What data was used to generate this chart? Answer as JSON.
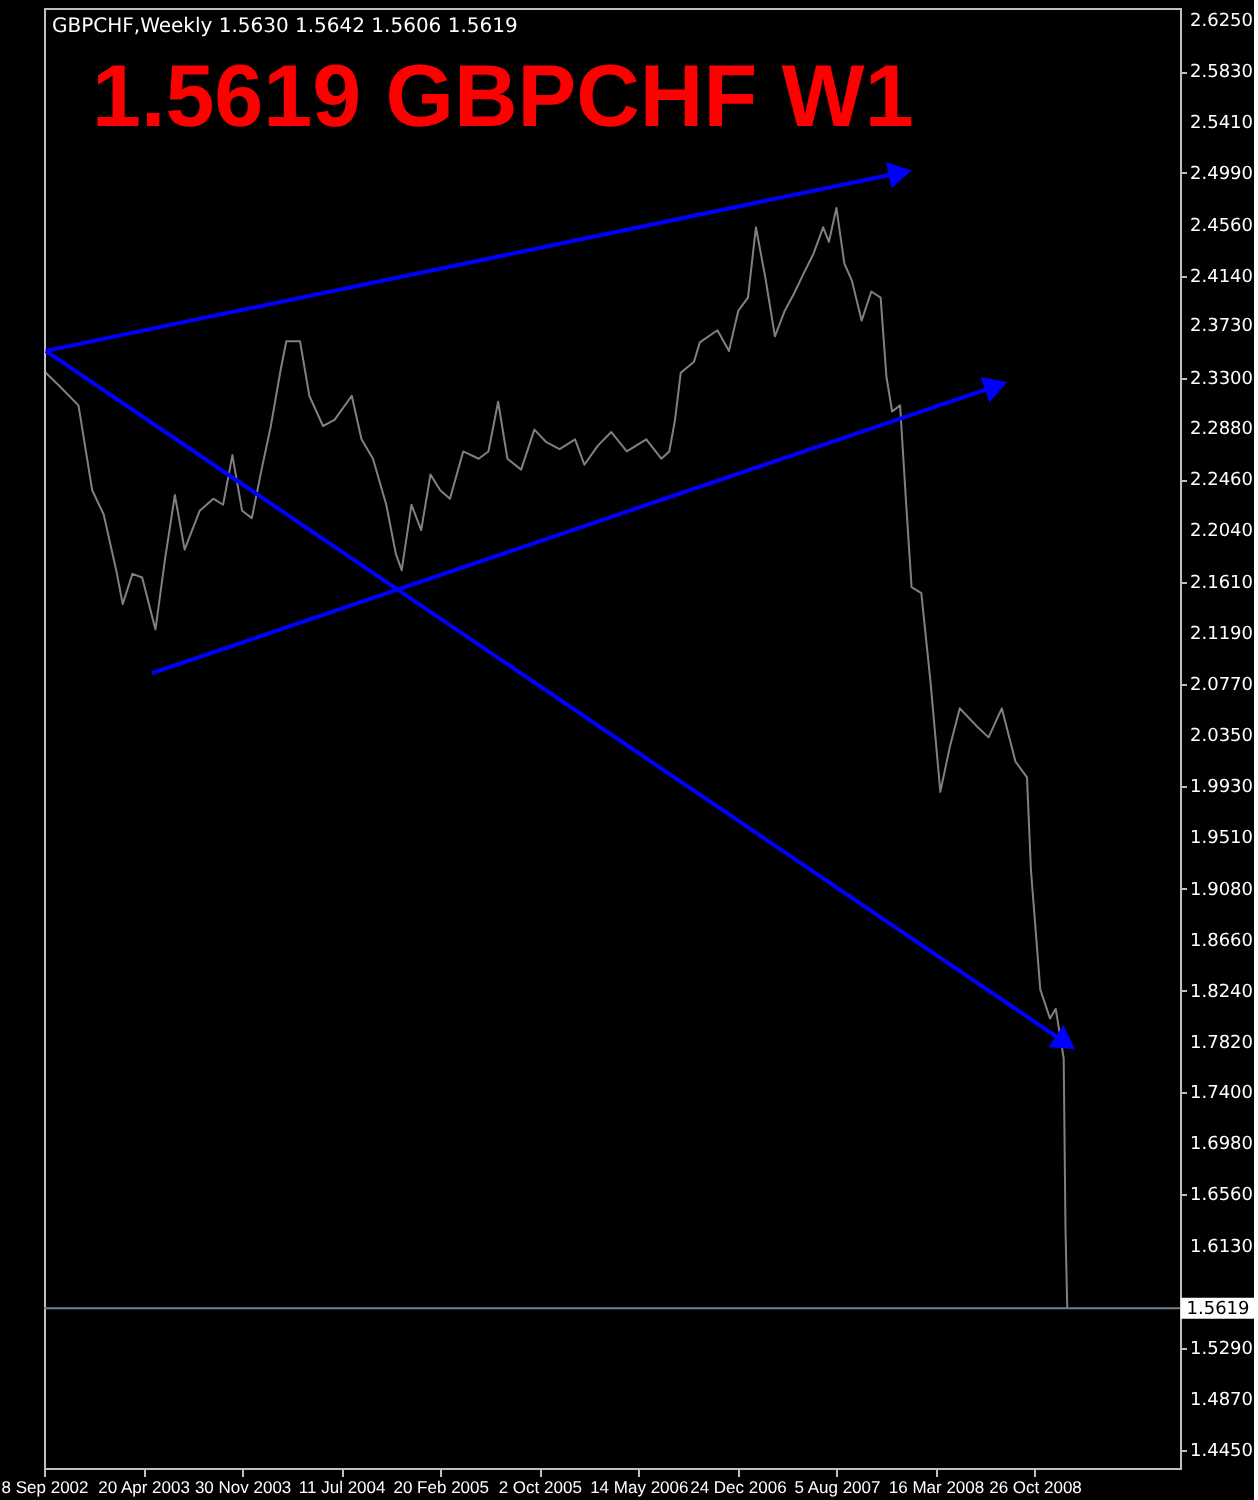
{
  "chart_data": {
    "type": "line",
    "title": "1.5619 GBPCHF W1",
    "subtitle": "GBPCHF,Weekly  1.5630 1.5642 1.5606 1.5619",
    "series": [
      {
        "type": "line",
        "color": "#808080",
        "x": [
          "2002-09-12",
          "2002-10-13",
          "2002-11-25",
          "2002-12-26",
          "2003-01-21",
          "2003-02-20",
          "2003-03-05",
          "2003-03-27",
          "2003-04-18",
          "2003-05-18",
          "2003-06-09",
          "2003-07-01",
          "2003-07-23",
          "2003-08-26",
          "2003-09-26",
          "2003-10-18",
          "2003-11-08",
          "2003-11-30",
          "2003-12-22",
          "2004-01-13",
          "2004-02-03",
          "2004-02-25",
          "2004-03-09",
          "2004-04-09",
          "2004-04-30",
          "2004-05-31",
          "2004-06-26",
          "2004-08-04",
          "2004-08-26",
          "2004-09-21",
          "2004-10-21",
          "2004-11-12",
          "2004-11-25",
          "2004-12-17",
          "2005-01-08",
          "2005-01-29",
          "2005-02-20",
          "2005-03-14",
          "2005-04-13",
          "2005-05-18",
          "2005-06-09",
          "2005-07-01",
          "2005-07-22",
          "2005-08-22",
          "2005-09-21",
          "2005-10-17",
          "2005-11-17",
          "2005-12-22",
          "2006-01-12",
          "2006-02-12",
          "2006-03-14",
          "2006-04-18",
          "2006-06-01",
          "2006-07-05",
          "2006-07-23",
          "2006-08-05",
          "2006-08-18",
          "2006-09-17",
          "2006-09-30",
          "2006-11-09",
          "2006-12-05",
          "2006-12-26",
          "2007-01-17",
          "2007-02-04",
          "2007-02-25",
          "2007-03-19",
          "2007-04-10",
          "2007-05-02",
          "2007-05-23",
          "2007-06-14",
          "2007-07-06",
          "2007-07-19",
          "2007-08-05",
          "2007-08-23",
          "2007-09-09",
          "2007-10-01",
          "2007-10-23",
          "2007-11-13",
          "2007-11-26",
          "2007-12-09",
          "2007-12-27",
          "2008-01-09",
          "2008-01-22",
          "2008-02-13",
          "2008-03-05",
          "2008-03-27",
          "2008-04-18",
          "2008-05-10",
          "2008-06-18",
          "2008-07-14",
          "2008-08-13",
          "2008-09-13",
          "2008-10-09",
          "2008-10-18",
          "2008-11-08",
          "2008-11-30",
          "2008-12-13",
          "2008-12-31",
          "2009-01-04",
          "2009-01-08"
        ],
        "values": [
          2.334,
          2.323,
          2.307,
          2.237,
          2.217,
          2.168,
          2.143,
          2.168,
          2.165,
          2.122,
          2.181,
          2.233,
          2.188,
          2.22,
          2.23,
          2.225,
          2.266,
          2.22,
          2.214,
          2.254,
          2.29,
          2.336,
          2.36,
          2.36,
          2.315,
          2.29,
          2.295,
          2.315,
          2.279,
          2.263,
          2.225,
          2.184,
          2.171,
          2.225,
          2.204,
          2.25,
          2.237,
          2.23,
          2.269,
          2.263,
          2.269,
          2.31,
          2.263,
          2.254,
          2.287,
          2.277,
          2.271,
          2.279,
          2.258,
          2.274,
          2.285,
          2.269,
          2.279,
          2.263,
          2.269,
          2.295,
          2.334,
          2.343,
          2.359,
          2.369,
          2.352,
          2.385,
          2.396,
          2.454,
          2.413,
          2.364,
          2.385,
          2.4,
          2.416,
          2.432,
          2.454,
          2.442,
          2.47,
          2.424,
          2.41,
          2.377,
          2.401,
          2.396,
          2.331,
          2.302,
          2.307,
          2.23,
          2.157,
          2.152,
          2.078,
          1.988,
          2.026,
          2.057,
          2.042,
          2.033,
          2.057,
          2.013,
          2.0,
          1.923,
          1.825,
          1.801,
          1.809,
          1.768,
          1.629,
          1.5619
        ]
      },
      {
        "type": "line",
        "color": "#0000ff",
        "x": [
          "2002-09-12",
          "2007-12-27"
        ],
        "values": [
          2.352,
          2.499
        ]
      },
      {
        "type": "line",
        "color": "#0000ff",
        "x": [
          "2003-05-10",
          "2008-07-31"
        ],
        "values": [
          2.086,
          2.323
        ]
      },
      {
        "type": "line",
        "color": "#0000ff",
        "x": [
          "2002-09-12",
          "2009-01-04"
        ],
        "values": [
          2.352,
          1.781
        ]
      }
    ],
    "xlim": [
      "2002-09-08",
      "2009-09-20"
    ],
    "xticks": [
      {
        "value": "2002-09-08",
        "label": "8 Sep 2002"
      },
      {
        "value": "2003-04-20",
        "label": "20 Apr 2003"
      },
      {
        "value": "2003-11-30",
        "label": "30 Nov 2003"
      },
      {
        "value": "2004-07-11",
        "label": "11 Jul 2004"
      },
      {
        "value": "2005-02-20",
        "label": "20 Feb 2005"
      },
      {
        "value": "2005-10-02",
        "label": "2 Oct 2005"
      },
      {
        "value": "2006-05-14",
        "label": "14 May 2006"
      },
      {
        "value": "2006-12-24",
        "label": "24 Dec 2006"
      },
      {
        "value": "2007-08-05",
        "label": "5 Aug 2007"
      },
      {
        "value": "2008-03-16",
        "label": "16 Mar 2008"
      },
      {
        "value": "2008-10-26",
        "label": "26 Oct 2008"
      }
    ],
    "ylim": [
      1.43,
      2.635
    ],
    "yticks": [
      {
        "value": 2.625,
        "label": "2.6250"
      },
      {
        "value": 2.583,
        "label": "2.5830"
      },
      {
        "value": 2.541,
        "label": "2.5410"
      },
      {
        "value": 2.499,
        "label": "2.4990"
      },
      {
        "value": 2.456,
        "label": "2.4560"
      },
      {
        "value": 2.414,
        "label": "2.4140"
      },
      {
        "value": 2.373,
        "label": "2.3730"
      },
      {
        "value": 2.33,
        "label": "2.3300"
      },
      {
        "value": 2.288,
        "label": "2.2880"
      },
      {
        "value": 2.246,
        "label": "2.2460"
      },
      {
        "value": 2.204,
        "label": "2.2040"
      },
      {
        "value": 2.161,
        "label": "2.1610"
      },
      {
        "value": 2.119,
        "label": "2.1190"
      },
      {
        "value": 2.077,
        "label": "2.0770"
      },
      {
        "value": 2.035,
        "label": "2.0350"
      },
      {
        "value": 1.993,
        "label": "1.9930"
      },
      {
        "value": 1.951,
        "label": "1.9510"
      },
      {
        "value": 1.908,
        "label": "1.9080"
      },
      {
        "value": 1.866,
        "label": "1.8660"
      },
      {
        "value": 1.824,
        "label": "1.8240"
      },
      {
        "value": 1.782,
        "label": "1.7820"
      },
      {
        "value": 1.74,
        "label": "1.7400"
      },
      {
        "value": 1.698,
        "label": "1.6980"
      },
      {
        "value": 1.656,
        "label": "1.6560"
      },
      {
        "value": 1.613,
        "label": "1.6130"
      },
      {
        "value": 1.529,
        "label": "1.5290"
      },
      {
        "value": 1.487,
        "label": "1.4870"
      },
      {
        "value": 1.445,
        "label": "1.4450"
      }
    ],
    "ref_lines": [
      {
        "axis": "y",
        "value": 1.5619,
        "label": "1.5619",
        "color": "#708090"
      }
    ],
    "grid": false
  }
}
